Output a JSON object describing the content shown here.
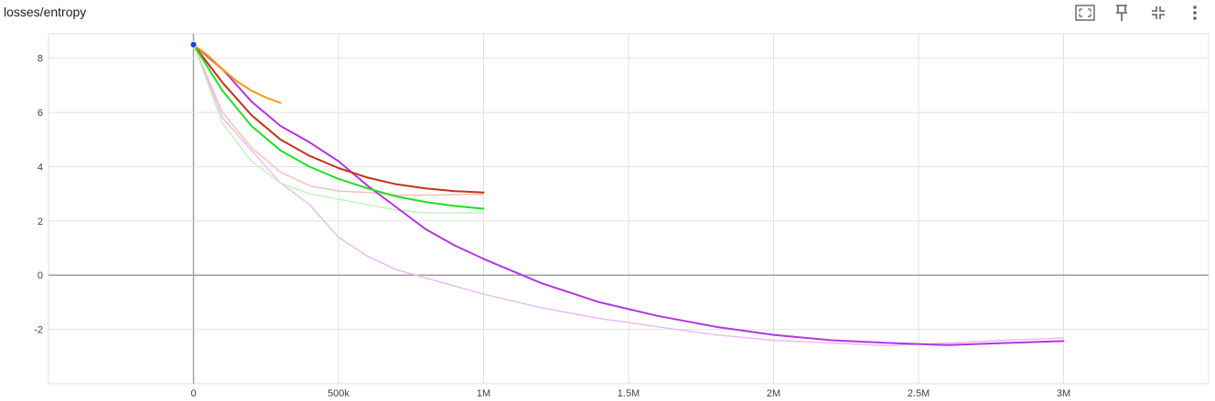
{
  "card": {
    "title": "losses/entropy",
    "toolbar": [
      {
        "name": "fit-domain-icon",
        "label": "Fit domain to data"
      },
      {
        "name": "pin-icon",
        "label": "Pin card"
      },
      {
        "name": "collapse-icon",
        "label": "Collapse"
      },
      {
        "name": "more-vert-icon",
        "label": "More"
      }
    ]
  },
  "chart_data": {
    "type": "line",
    "title": "losses/entropy",
    "xlabel": "",
    "ylabel": "",
    "xlim": [
      -500000,
      3500000
    ],
    "ylim": [
      -4.0,
      8.9
    ],
    "x_ticks": [
      {
        "value": 0,
        "label": "0"
      },
      {
        "value": 500000,
        "label": "500k"
      },
      {
        "value": 1000000,
        "label": "1M"
      },
      {
        "value": 1500000,
        "label": "1.5M"
      },
      {
        "value": 2000000,
        "label": "2M"
      },
      {
        "value": 2500000,
        "label": "2.5M"
      },
      {
        "value": 3000000,
        "label": "3M"
      }
    ],
    "y_ticks": [
      {
        "value": 8,
        "label": "8"
      },
      {
        "value": 6,
        "label": "6"
      },
      {
        "value": 4,
        "label": "4"
      },
      {
        "value": 2,
        "label": "2"
      },
      {
        "value": 0,
        "label": "0"
      },
      {
        "value": -2,
        "label": "-2"
      }
    ],
    "grid": true,
    "series": [
      {
        "color": "#b136e0",
        "raw_color": "#e7b9f5",
        "x": [
          0,
          100000,
          200000,
          300000,
          400000,
          500000,
          600000,
          700000,
          800000,
          900000,
          1000000,
          1200000,
          1400000,
          1600000,
          1800000,
          2000000,
          2200000,
          2400000,
          2600000,
          2800000,
          3000000
        ],
        "smoothed": [
          8.5,
          7.6,
          6.4,
          5.5,
          4.9,
          4.2,
          3.3,
          2.5,
          1.7,
          1.1,
          0.6,
          -0.3,
          -1.0,
          -1.5,
          -1.9,
          -2.2,
          -2.4,
          -2.5,
          -2.58,
          -2.5,
          -2.43
        ],
        "raw": [
          8.5,
          5.8,
          4.6,
          3.4,
          2.6,
          1.4,
          0.7,
          0.2,
          -0.1,
          -0.4,
          -0.7,
          -1.2,
          -1.6,
          -1.9,
          -2.2,
          -2.4,
          -2.5,
          -2.6,
          -2.5,
          -2.4,
          -2.32
        ]
      },
      {
        "color": "#c23318",
        "raw_color": "#f5bdb3",
        "x": [
          0,
          100000,
          200000,
          300000,
          400000,
          500000,
          600000,
          700000,
          800000,
          900000,
          1000000
        ],
        "smoothed": [
          8.5,
          7.1,
          5.9,
          5.0,
          4.4,
          3.95,
          3.6,
          3.35,
          3.2,
          3.1,
          3.05
        ],
        "raw": [
          8.5,
          6.0,
          4.7,
          3.8,
          3.3,
          3.1,
          3.05,
          2.95,
          2.95,
          2.97,
          2.98
        ]
      },
      {
        "color": "#1fe01f",
        "raw_color": "#bff2bf",
        "x": [
          0,
          100000,
          200000,
          300000,
          400000,
          500000,
          600000,
          700000,
          800000,
          900000,
          1000000
        ],
        "smoothed": [
          8.5,
          6.8,
          5.5,
          4.6,
          4.0,
          3.55,
          3.2,
          2.9,
          2.7,
          2.55,
          2.45
        ],
        "raw": [
          8.5,
          5.6,
          4.2,
          3.4,
          3.0,
          2.8,
          2.6,
          2.4,
          2.3,
          2.3,
          2.3
        ]
      },
      {
        "color": "#f59e0b",
        "raw_color": "#fde1b3",
        "x": [
          0,
          50000,
          100000,
          150000,
          200000,
          250000,
          300000
        ],
        "smoothed": [
          8.5,
          8.1,
          7.6,
          7.15,
          6.8,
          6.55,
          6.35
        ],
        "raw": [
          8.5,
          8.0,
          7.5,
          7.1,
          6.8,
          6.55,
          6.35
        ]
      }
    ],
    "hover_point": {
      "x": 0,
      "y": 8.5,
      "color": "#1a44e0"
    }
  }
}
